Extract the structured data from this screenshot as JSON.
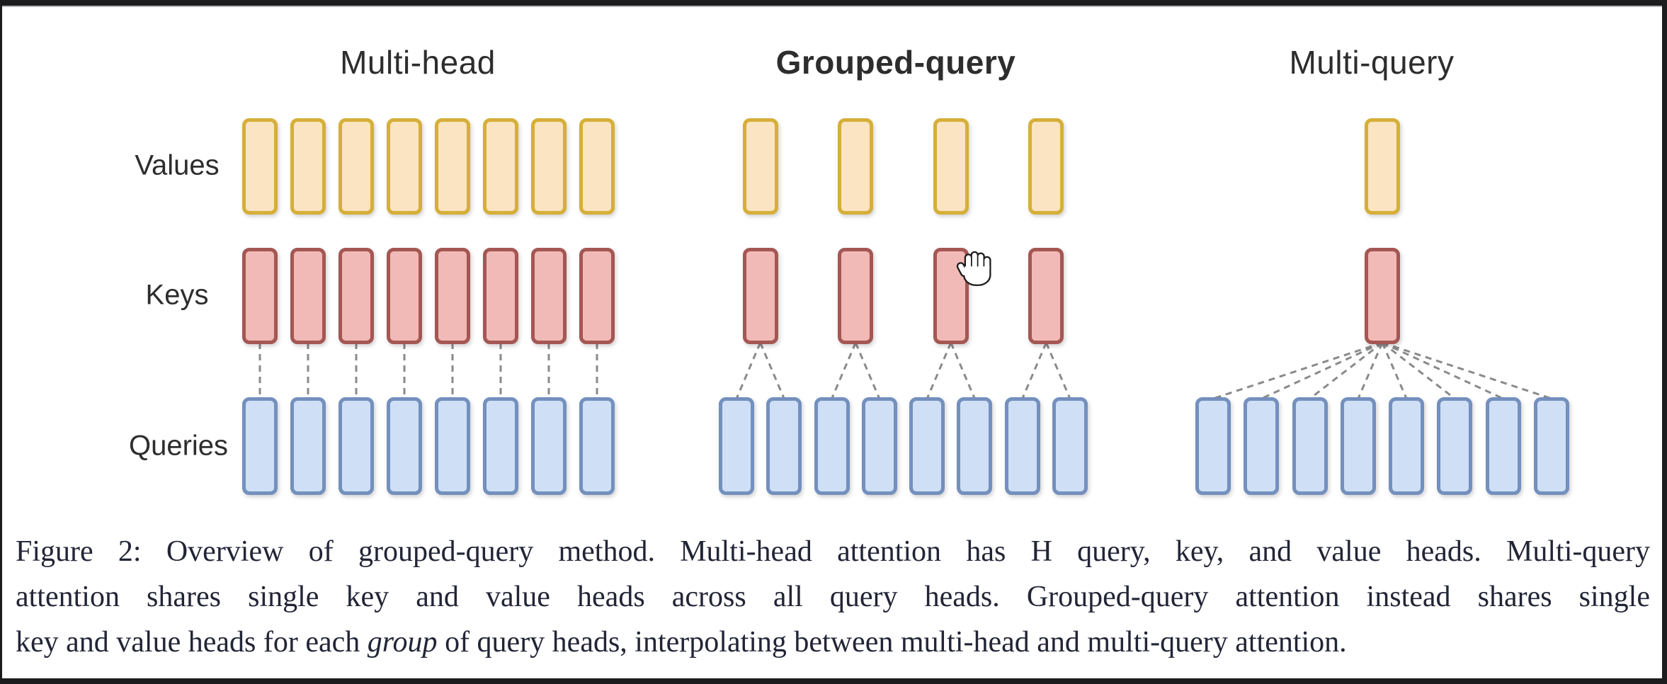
{
  "frame": {
    "bar_color": "#1c1c1e",
    "page_background": "#ffffff"
  },
  "figure": {
    "row_labels": [
      "Values",
      "Keys",
      "Queries"
    ],
    "sections": [
      {
        "title": "Multi-head",
        "bold": false,
        "kv_heads": 8,
        "query_heads": 8
      },
      {
        "title": "Grouped-query",
        "bold": true,
        "kv_heads": 4,
        "query_heads": 8
      },
      {
        "title": "Multi-query",
        "bold": false,
        "kv_heads": 1,
        "query_heads": 8
      }
    ],
    "colors": {
      "value_fill": "#fae4c2",
      "value_border": "#d6af38",
      "key_fill": "#f2bab7",
      "key_border": "#a45753",
      "query_fill": "#cfe0f6",
      "query_border": "#7390be",
      "connector": "#8a8a8a"
    },
    "cursor": "open-hand"
  },
  "caption": {
    "line1": "Figure 2: Overview of grouped-query method. Multi-head attention has H query, key, and value heads. Multi-query",
    "line2": "attention shares single key and value heads across all query heads. Grouped-query attention instead shares single",
    "line3_pre": "key and value heads for each ",
    "line3_italic": "group",
    "line3_post": " of query heads, interpolating between multi-head and multi-query attention."
  }
}
